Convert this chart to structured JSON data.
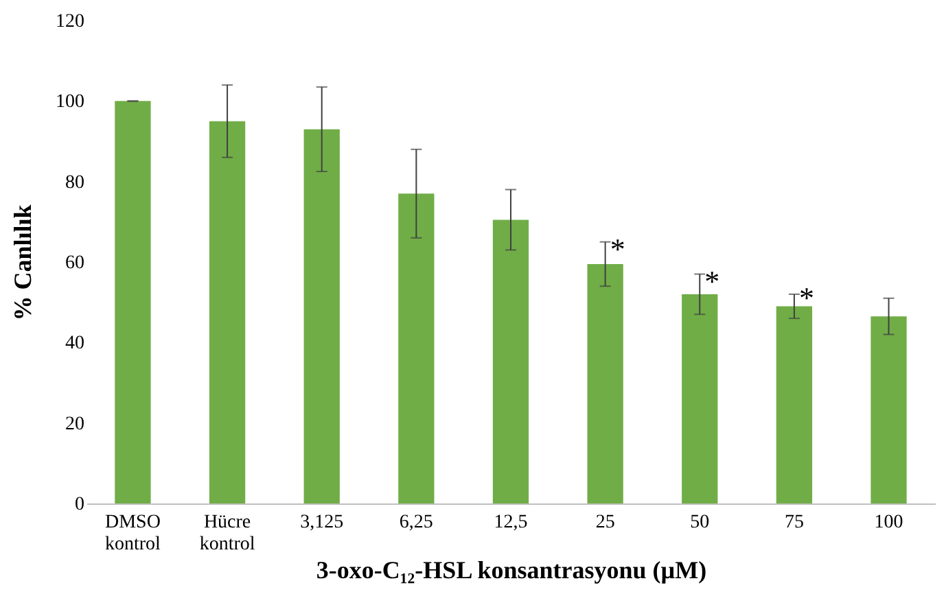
{
  "chart_data": {
    "type": "bar",
    "xlabel": "3-oxo-C₁₂-HSL konsantrasyonu (µM)",
    "ylabel": "% Canlılık",
    "categories": [
      "DMSO kontrol",
      "Hücre kontrol",
      "3,125",
      "6,25",
      "12,5",
      "25",
      "50",
      "75",
      "100"
    ],
    "values": [
      100,
      95,
      93,
      77,
      70.5,
      59.5,
      52,
      49,
      46.5
    ],
    "errors": [
      0,
      9,
      10.5,
      11,
      7.5,
      5.5,
      5,
      3,
      4.5
    ],
    "color": "#70ad47",
    "ylim": [
      0,
      120
    ],
    "yticks": [
      0,
      20,
      40,
      60,
      80,
      100,
      120
    ],
    "grid": false,
    "annotations": [
      {
        "text": "*",
        "x": "25",
        "y": 63
      },
      {
        "text": "*",
        "x": "50",
        "y": 55
      },
      {
        "text": "*",
        "x": "75",
        "y": 51
      }
    ]
  }
}
